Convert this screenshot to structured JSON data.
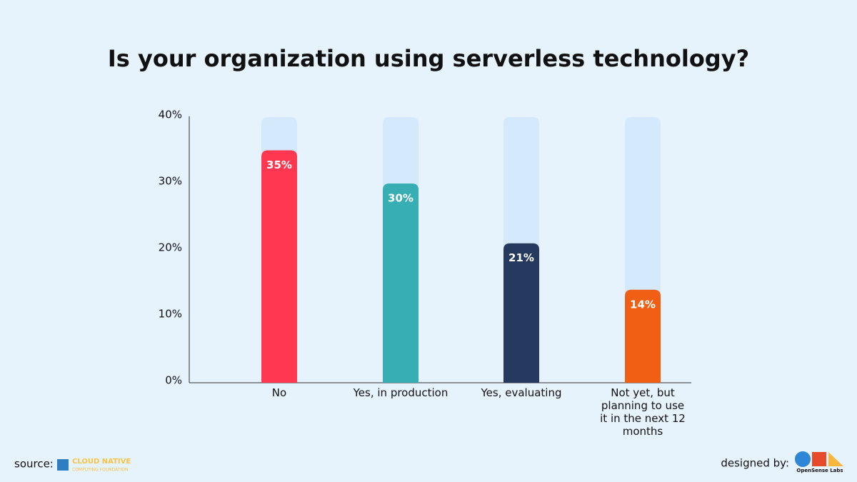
{
  "chart_data": {
    "type": "bar",
    "title": "Is your organization using serverless technology?",
    "categories": [
      "No",
      "Yes, in production",
      "Yes, evaluating",
      "Not yet, but planning to use it in the next 12 months"
    ],
    "values": [
      35,
      30,
      21,
      14
    ],
    "value_labels": [
      "35%",
      "30%",
      "21%",
      "14%"
    ],
    "colors": [
      "#ff3750",
      "#36aeb4",
      "#263a60",
      "#f05f14"
    ],
    "ylim": [
      0,
      40
    ],
    "yticks": [
      {
        "value": 0,
        "label": "0%"
      },
      {
        "value": 10,
        "label": "10%"
      },
      {
        "value": 20,
        "label": "20%"
      },
      {
        "value": 30,
        "label": "30%"
      },
      {
        "value": 40,
        "label": "40%"
      }
    ],
    "grid": false
  },
  "footer": {
    "source_label": "source:",
    "source_name_1": "CLOUD NATIVE",
    "source_name_2": "COMPUTING FOUNDATION",
    "designer_label": "designed by:",
    "designer_name": "OpenSense Labs"
  }
}
